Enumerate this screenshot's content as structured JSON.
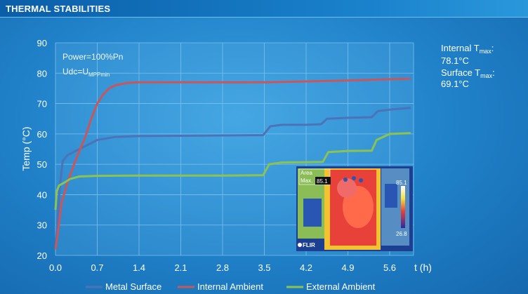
{
  "header": {
    "title": "THERMAL STABILITIES"
  },
  "annotation": {
    "line1": "Power=100%Pn",
    "line2_main": "Udc=U",
    "line2_sub": "MPPmin"
  },
  "side_note": {
    "internal_label": "Internal T",
    "internal_sub": "max",
    "internal_colon": ":",
    "internal_value": "78.1°C",
    "surface_label": "Surface T",
    "surface_sub": "max",
    "surface_colon": ":",
    "surface_value": "69.1°C"
  },
  "thermal_image": {
    "logo": "FLIR",
    "area_label": "Area",
    "max_label": "Max.",
    "max_value": "85.1",
    "scale_top": "85.1",
    "scale_bottom": "26.8"
  },
  "colors": {
    "metal_surface": "#4c73b8",
    "internal_ambient": "#c9565b",
    "external_ambient": "#8cc252",
    "grid": "#7cc0ec"
  },
  "chart_data": {
    "type": "line",
    "title": "",
    "xlabel": "t (h)",
    "ylabel": "Temp (°C)",
    "xlim": [
      0,
      6.0
    ],
    "ylim": [
      20,
      90
    ],
    "x_ticks": [
      "0.0",
      "0.7",
      "1.4",
      "2.1",
      "2.8",
      "3.5",
      "4.2",
      "4.9",
      "5.6"
    ],
    "y_ticks": [
      "20",
      "30",
      "40",
      "50",
      "60",
      "70",
      "80",
      "90"
    ],
    "grid": true,
    "legend_position": "bottom",
    "series": [
      {
        "name": "Metal Surface",
        "color": "#4c73b8",
        "points": [
          [
            0.0,
            22
          ],
          [
            0.03,
            30
          ],
          [
            0.07,
            42
          ],
          [
            0.12,
            51
          ],
          [
            0.2,
            53
          ],
          [
            0.3,
            54
          ],
          [
            0.5,
            56
          ],
          [
            0.7,
            58
          ],
          [
            1.0,
            59
          ],
          [
            1.4,
            59.3
          ],
          [
            2.1,
            59.4
          ],
          [
            2.8,
            59.5
          ],
          [
            3.4,
            59.6
          ],
          [
            3.48,
            59.6
          ],
          [
            3.6,
            62.5
          ],
          [
            3.8,
            63
          ],
          [
            4.2,
            63
          ],
          [
            4.45,
            63.2
          ],
          [
            4.55,
            65
          ],
          [
            4.9,
            65.3
          ],
          [
            5.3,
            65.5
          ],
          [
            5.4,
            67.5
          ],
          [
            5.6,
            68
          ],
          [
            5.95,
            68.6
          ]
        ]
      },
      {
        "name": "Internal Ambient",
        "color": "#c9565b",
        "points": [
          [
            0.0,
            22
          ],
          [
            0.05,
            29
          ],
          [
            0.1,
            37
          ],
          [
            0.2,
            44
          ],
          [
            0.35,
            52
          ],
          [
            0.5,
            59
          ],
          [
            0.6,
            65
          ],
          [
            0.7,
            70
          ],
          [
            0.8,
            73
          ],
          [
            0.9,
            75
          ],
          [
            1.0,
            76
          ],
          [
            1.2,
            76.8
          ],
          [
            1.4,
            77
          ],
          [
            2.1,
            77
          ],
          [
            2.8,
            77
          ],
          [
            3.5,
            77
          ],
          [
            4.2,
            77.3
          ],
          [
            4.9,
            77.6
          ],
          [
            5.6,
            78
          ],
          [
            5.95,
            78.1
          ]
        ]
      },
      {
        "name": "External Ambient",
        "color": "#8cc252",
        "points": [
          [
            0.0,
            35
          ],
          [
            0.02,
            41
          ],
          [
            0.06,
            43
          ],
          [
            0.15,
            44
          ],
          [
            0.25,
            45.2
          ],
          [
            0.4,
            46
          ],
          [
            0.7,
            46.2
          ],
          [
            1.4,
            46.3
          ],
          [
            2.1,
            46.3
          ],
          [
            2.8,
            46.3
          ],
          [
            3.4,
            46.4
          ],
          [
            3.48,
            46.4
          ],
          [
            3.58,
            50
          ],
          [
            3.8,
            50.6
          ],
          [
            4.2,
            50.7
          ],
          [
            4.48,
            50.8
          ],
          [
            4.57,
            54
          ],
          [
            4.9,
            54.4
          ],
          [
            5.3,
            54.5
          ],
          [
            5.38,
            58
          ],
          [
            5.6,
            60
          ],
          [
            5.95,
            60.3
          ]
        ]
      }
    ]
  }
}
